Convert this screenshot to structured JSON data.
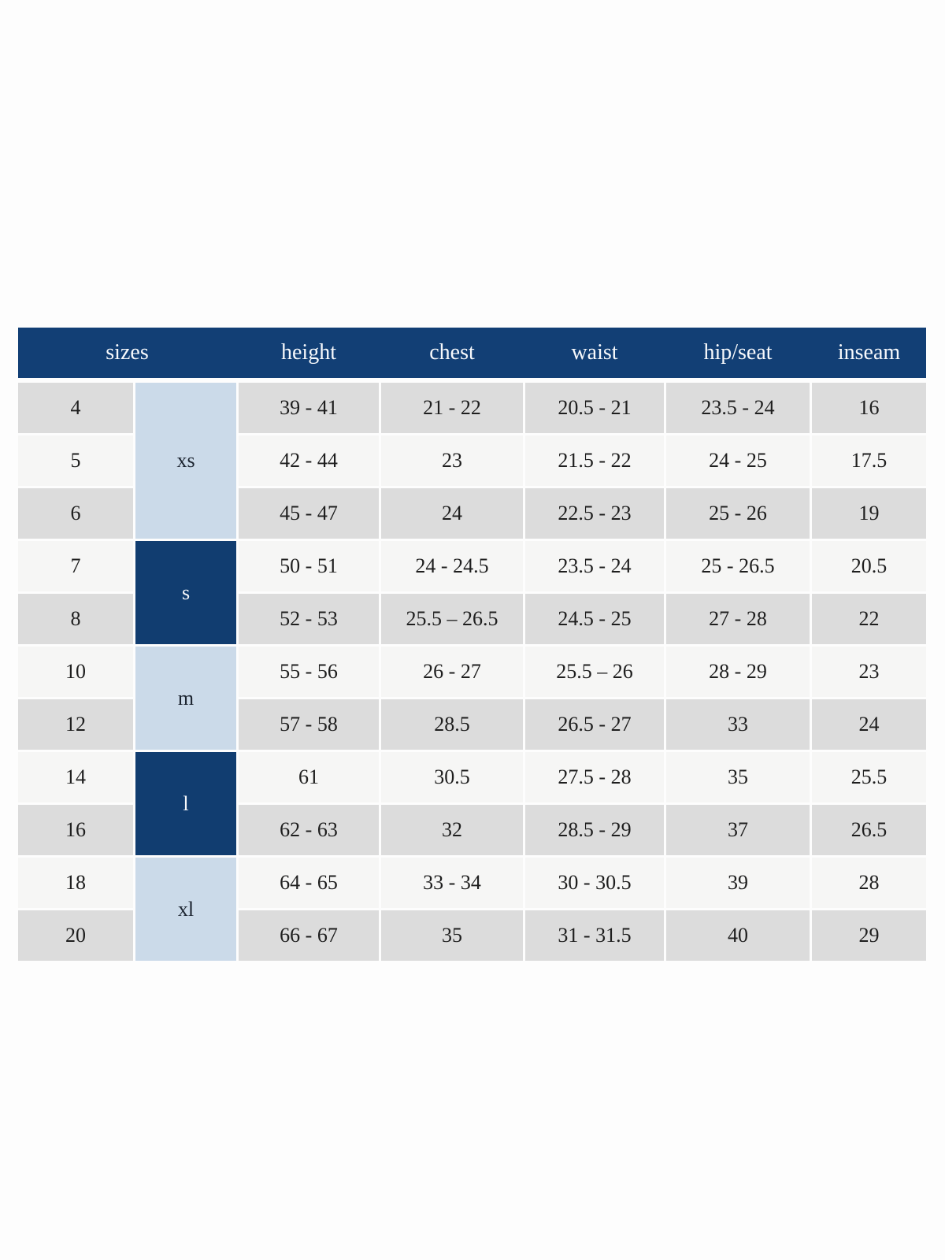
{
  "colors": {
    "header_bg": "#123f75",
    "group_dark_bg": "#113d70",
    "group_light_bg": "#cbdae9",
    "row_gray_bg": "#dcdcdc",
    "row_light_bg": "#f6f6f5",
    "header_text": "#f7f9fc",
    "body_text": "#1e1e1e"
  },
  "chart_data": {
    "type": "table",
    "columns": [
      "sizes",
      "height",
      "chest",
      "waist",
      "hip/seat",
      "inseam"
    ],
    "groups": [
      {
        "label": "xs",
        "tone": "light",
        "rows": [
          {
            "size": "4",
            "height": "39 - 41",
            "chest": "21 - 22",
            "waist": "20.5 - 21",
            "hip_seat": "23.5 - 24",
            "inseam": "16"
          },
          {
            "size": "5",
            "height": "42 - 44",
            "chest": "23",
            "waist": "21.5 - 22",
            "hip_seat": "24 - 25",
            "inseam": "17.5"
          },
          {
            "size": "6",
            "height": "45 - 47",
            "chest": "24",
            "waist": "22.5 - 23",
            "hip_seat": "25 - 26",
            "inseam": "19"
          }
        ]
      },
      {
        "label": "s",
        "tone": "dark",
        "rows": [
          {
            "size": "7",
            "height": "50 - 51",
            "chest": "24 - 24.5",
            "waist": "23.5 - 24",
            "hip_seat": "25 - 26.5",
            "inseam": "20.5"
          },
          {
            "size": "8",
            "height": "52 - 53",
            "chest": "25.5 – 26.5",
            "waist": "24.5 - 25",
            "hip_seat": "27 - 28",
            "inseam": "22"
          }
        ]
      },
      {
        "label": "m",
        "tone": "light",
        "rows": [
          {
            "size": "10",
            "height": "55 - 56",
            "chest": "26 - 27",
            "waist": "25.5 – 26",
            "hip_seat": "28 - 29",
            "inseam": "23"
          },
          {
            "size": "12",
            "height": "57 - 58",
            "chest": "28.5",
            "waist": "26.5 - 27",
            "hip_seat": "33",
            "inseam": "24"
          }
        ]
      },
      {
        "label": "l",
        "tone": "dark",
        "rows": [
          {
            "size": "14",
            "height": "61",
            "chest": "30.5",
            "waist": "27.5 - 28",
            "hip_seat": "35",
            "inseam": "25.5"
          },
          {
            "size": "16",
            "height": "62 - 63",
            "chest": "32",
            "waist": "28.5 - 29",
            "hip_seat": "37",
            "inseam": "26.5"
          }
        ]
      },
      {
        "label": "xl",
        "tone": "light",
        "rows": [
          {
            "size": "18",
            "height": "64 - 65",
            "chest": "33 - 34",
            "waist": "30 - 30.5",
            "hip_seat": "39",
            "inseam": "28"
          },
          {
            "size": "20",
            "height": "66 - 67",
            "chest": "35",
            "waist": "31 - 31.5",
            "hip_seat": "40",
            "inseam": "29"
          }
        ]
      }
    ]
  }
}
